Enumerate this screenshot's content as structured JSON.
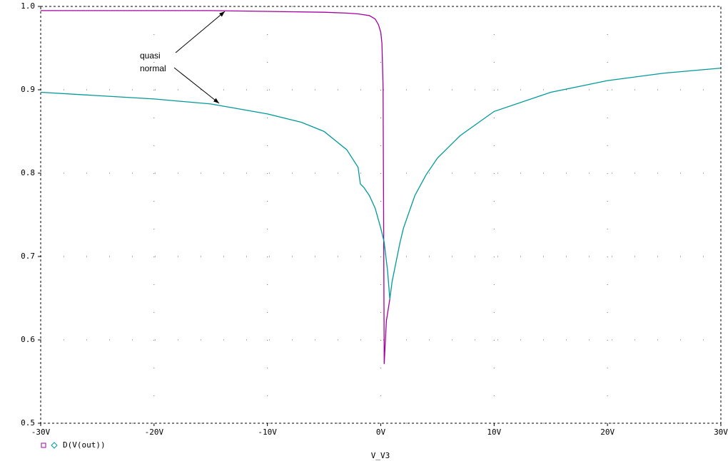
{
  "chart_data": {
    "type": "line",
    "xlabel": "V_V3",
    "legend_label": "D(V(out))",
    "annotations": [
      "quasi",
      "normal"
    ],
    "xlim": [
      -30,
      30
    ],
    "ylim": [
      0.5,
      1
    ],
    "xticks": [
      {
        "value": -30,
        "label": "-30V"
      },
      {
        "value": -20,
        "label": "-20V"
      },
      {
        "value": -10,
        "label": "-10V"
      },
      {
        "value": 0,
        "label": "0V"
      },
      {
        "value": 10,
        "label": "10V"
      },
      {
        "value": 20,
        "label": "20V"
      },
      {
        "value": 30,
        "label": "30V"
      }
    ],
    "yticks": [
      0.5,
      0.6,
      0.7,
      0.8,
      0.9,
      {
        "value": 1,
        "label": "1.0"
      }
    ],
    "grid": true,
    "series": [
      {
        "color": "#a000a0",
        "marker": "square",
        "x": [
          -30,
          -15,
          -10,
          -5,
          -3,
          -2,
          -1,
          -0.5,
          -0.2,
          0,
          0.1,
          0.2,
          0.25,
          0.3,
          0.5,
          0.8
        ],
        "values": [
          0.995,
          0.995,
          0.994,
          0.993,
          0.992,
          0.991,
          0.989,
          0.985,
          0.978,
          0.969,
          0.956,
          0.905,
          0.75,
          0.571,
          0.623,
          0.649
        ]
      },
      {
        "color": "#009999",
        "marker": "diamond",
        "x": [
          -30,
          -20,
          -15,
          -10,
          -7,
          -5,
          -3,
          -2,
          -1.8,
          -1.5,
          -1,
          -0.5,
          0,
          0.3,
          0.6,
          0.8,
          1,
          1.7,
          2,
          3,
          4,
          5,
          7,
          10,
          15,
          20,
          25,
          30
        ],
        "values": [
          0.897,
          0.889,
          0.883,
          0.871,
          0.861,
          0.85,
          0.828,
          0.807,
          0.787,
          0.783,
          0.773,
          0.758,
          0.734,
          0.717,
          0.683,
          0.649,
          0.67,
          0.717,
          0.734,
          0.773,
          0.798,
          0.818,
          0.845,
          0.874,
          0.897,
          0.911,
          0.92,
          0.926
        ]
      }
    ]
  }
}
